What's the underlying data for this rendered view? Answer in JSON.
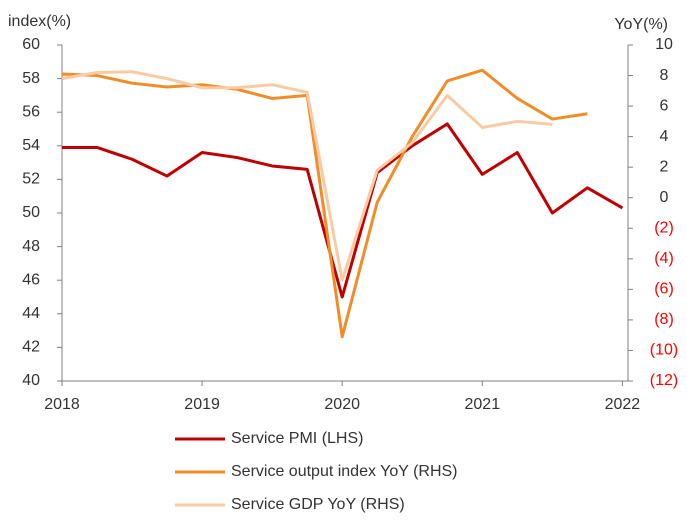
{
  "chart_data": {
    "type": "line",
    "y_label": "index(%)",
    "y2_label": "YoY(%)",
    "x": [
      2018,
      2018.25,
      2018.5,
      2018.75,
      2019,
      2019.25,
      2019.5,
      2019.75,
      2020,
      2020.25,
      2020.5,
      2020.75,
      2021,
      2021.25,
      2021.5,
      2021.75,
      2022
    ],
    "xlim": [
      2018,
      2022.04
    ],
    "xticks": [
      2018,
      2019,
      2020,
      2021,
      2022
    ],
    "ylim": [
      40,
      60
    ],
    "yticks": [
      40,
      42,
      44,
      46,
      48,
      50,
      52,
      54,
      56,
      58,
      60
    ],
    "y2lim": [
      -12,
      10
    ],
    "y2ticks": [
      {
        "value": -12,
        "label": "(12)"
      },
      {
        "value": -10,
        "label": "(10)"
      },
      {
        "value": -8,
        "label": "(8)"
      },
      {
        "value": -6,
        "label": "(6)"
      },
      {
        "value": -4,
        "label": "(4)"
      },
      {
        "value": -2,
        "label": "(2)"
      },
      0,
      2,
      4,
      6,
      8,
      10
    ],
    "y2_negative_tick_color": "#ff0000",
    "series": [
      {
        "name": "Service PMI (LHS)",
        "color": "#c00000",
        "values": [
          53.9,
          53.9,
          53.2,
          52.2,
          53.6,
          53.3,
          52.8,
          52.6,
          45.0,
          52.4,
          54.0,
          55.3,
          52.3,
          53.6,
          50.0,
          51.5,
          50.3
        ]
      },
      {
        "name": "Service output index YoY (RHS)",
        "color": "#f28c28",
        "axis": "y2",
        "values": [
          8.1,
          8.0,
          7.5,
          7.25,
          7.4,
          7.1,
          6.5,
          6.7,
          -9.1,
          -0.3,
          4.0,
          7.65,
          8.35,
          6.5,
          5.15,
          5.5,
          null
        ]
      },
      {
        "name": "Service GDP YoY (RHS)",
        "color": "#f9cba4",
        "axis": "y2",
        "values": [
          7.8,
          8.2,
          8.25,
          7.8,
          7.2,
          7.2,
          7.4,
          6.9,
          -5.4,
          1.8,
          3.6,
          6.7,
          4.6,
          5.0,
          4.8,
          null,
          null
        ]
      }
    ]
  }
}
